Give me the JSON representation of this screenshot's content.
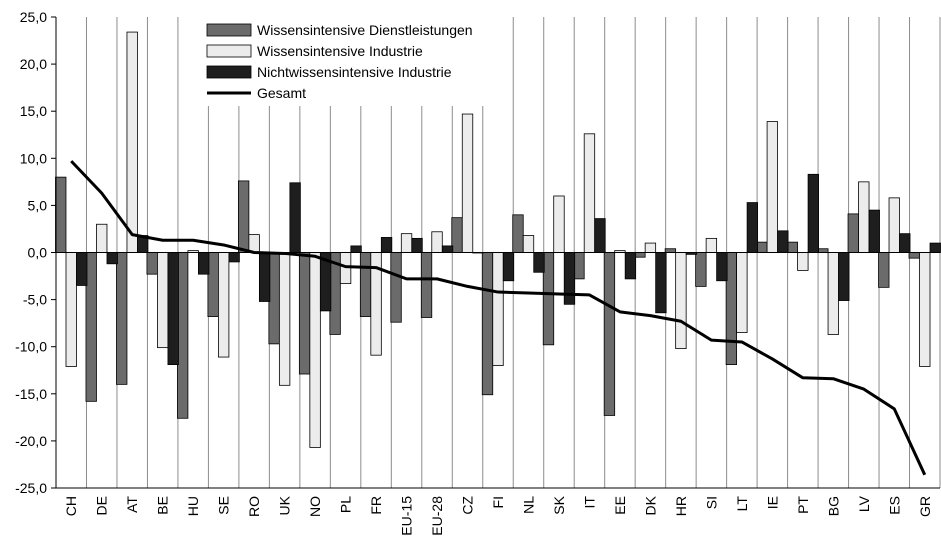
{
  "chart_data": {
    "type": "bar",
    "categories": [
      "CH",
      "DE",
      "AT",
      "BE",
      "HU",
      "SE",
      "RO",
      "UK",
      "NO",
      "PL",
      "FR",
      "EU-15",
      "EU-28",
      "CZ",
      "FI",
      "NL",
      "SK",
      "IT",
      "EE",
      "DK",
      "HR",
      "SI",
      "LT",
      "IE",
      "PT",
      "BG",
      "LV",
      "ES",
      "GR"
    ],
    "ylim": [
      -25,
      25
    ],
    "yticks": [
      "25,0",
      "20,0",
      "15,0",
      "10,0",
      "5,0",
      "0,0",
      "-5,0",
      "-10,0",
      "-15,0",
      "-20,0",
      "-25,0"
    ],
    "ytick_values": [
      25,
      20,
      15,
      10,
      5,
      0,
      -5,
      -10,
      -15,
      -20,
      -25
    ],
    "grid": "vertical category separators",
    "legend_placement": "top-center",
    "series": [
      {
        "name": "Wissensintensive Dienstleistungen",
        "kind": "bar",
        "color": "#6b6b6b",
        "values": [
          8.0,
          -15.8,
          -14.0,
          -2.3,
          -17.6,
          -6.8,
          7.6,
          -9.7,
          -12.9,
          -8.7,
          -6.8,
          -7.4,
          -6.9,
          3.7,
          -15.1,
          4.0,
          -9.8,
          -2.8,
          -17.3,
          -0.5,
          0.4,
          -3.6,
          -11.9,
          1.1,
          1.1,
          0.4,
          4.1,
          -3.7,
          -0.6
        ]
      },
      {
        "name": "Wissensintensive Industrie",
        "kind": "bar",
        "color": "#ececec",
        "values": [
          -12.1,
          3.0,
          23.4,
          -10.1,
          0.2,
          -11.1,
          1.9,
          -14.1,
          -20.7,
          -3.3,
          -10.9,
          2.0,
          2.2,
          14.7,
          -12.0,
          1.8,
          6.0,
          12.6,
          0.2,
          1.0,
          -10.2,
          1.5,
          -8.5,
          13.9,
          -1.9,
          -8.7,
          7.5,
          5.8,
          -12.1
        ]
      },
      {
        "name": "Nichtwissensintensive Industrie",
        "kind": "bar",
        "color": "#1e1e1e",
        "values": [
          -3.5,
          -1.2,
          1.8,
          -11.9,
          -2.3,
          -1.0,
          -5.2,
          7.4,
          -6.2,
          0.7,
          1.6,
          1.5,
          0.7,
          0.0,
          -3.0,
          -2.1,
          -5.5,
          3.6,
          -2.8,
          -6.4,
          -0.2,
          -3.0,
          5.3,
          2.3,
          8.3,
          -5.1,
          4.5,
          2.0,
          1.0
        ]
      },
      {
        "name": "Gesamt",
        "kind": "line",
        "color": "#000000",
        "values": [
          9.7,
          6.3,
          1.9,
          1.3,
          1.3,
          0.8,
          0.0,
          -0.1,
          -0.4,
          -1.5,
          -1.6,
          -2.8,
          -2.8,
          -3.6,
          -4.2,
          -4.3,
          -4.4,
          -4.5,
          -6.3,
          -6.7,
          -7.3,
          -9.3,
          -9.5,
          -11.3,
          -13.3,
          -13.4,
          -14.5,
          -16.6,
          -23.6
        ]
      }
    ]
  }
}
